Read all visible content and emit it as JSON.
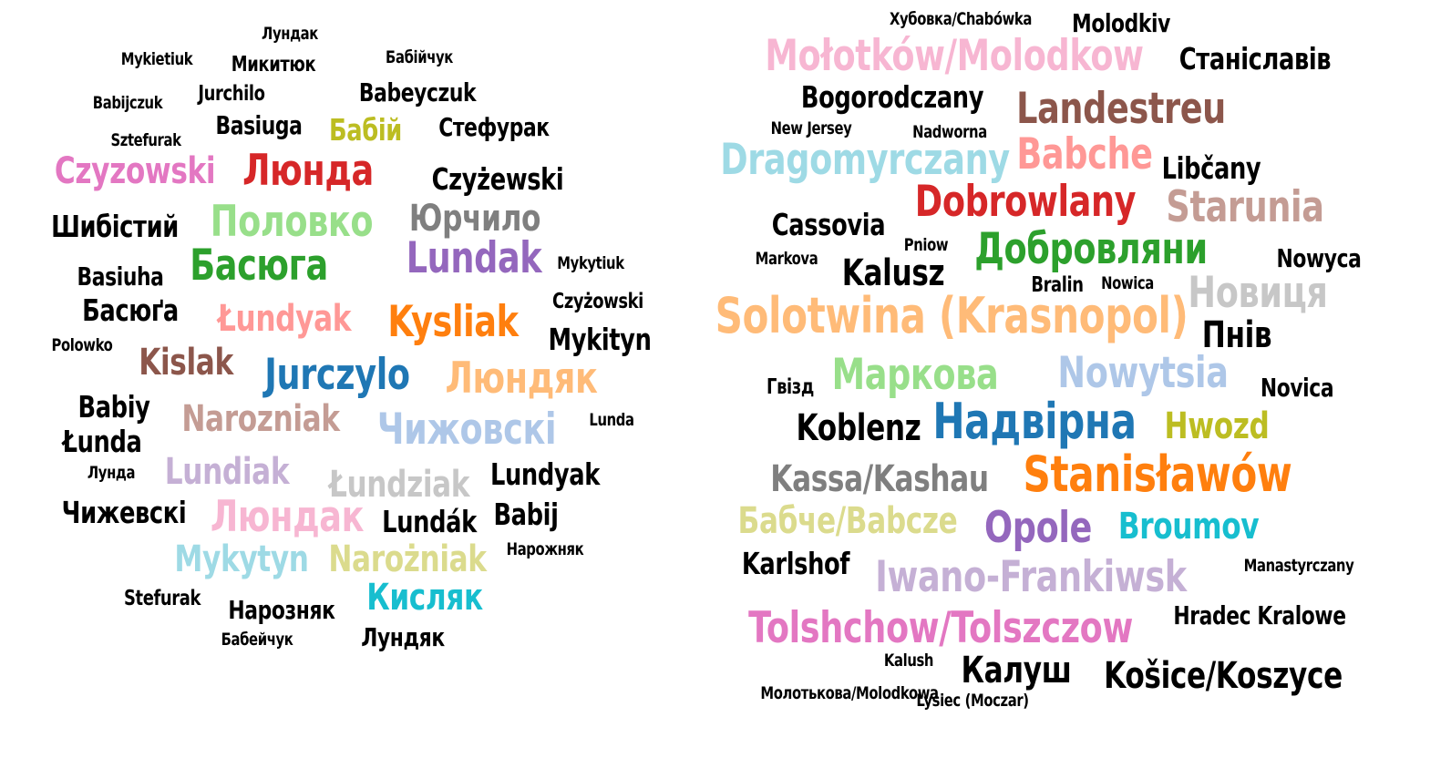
{
  "left_cloud": {
    "words": [
      {
        "text": "Лундак",
        "color": "#000000"
      },
      {
        "text": "Mykietiuk",
        "color": "#000000"
      },
      {
        "text": "Микитюк",
        "color": "#000000"
      },
      {
        "text": "Бабійчук",
        "color": "#000000"
      },
      {
        "text": "Babijczuk",
        "color": "#000000"
      },
      {
        "text": "Jurchilo",
        "color": "#000000"
      },
      {
        "text": "Babeyczuk",
        "color": "#000000"
      },
      {
        "text": "Basiuga",
        "color": "#000000"
      },
      {
        "text": "Бабій",
        "color": "#bcbd22"
      },
      {
        "text": "Стефурак",
        "color": "#000000"
      },
      {
        "text": "Sztefurak",
        "color": "#000000"
      },
      {
        "text": "Czyzowski",
        "color": "#e377c2"
      },
      {
        "text": "Люнда",
        "color": "#d62728"
      },
      {
        "text": "Czyżewski",
        "color": "#000000"
      },
      {
        "text": "Шибістий",
        "color": "#000000"
      },
      {
        "text": "Половко",
        "color": "#98df8a"
      },
      {
        "text": "Юрчило",
        "color": "#7f7f7f"
      },
      {
        "text": "Basiuha",
        "color": "#000000"
      },
      {
        "text": "Басюга",
        "color": "#2ca02c"
      },
      {
        "text": "Lundak",
        "color": "#9467bd"
      },
      {
        "text": "Mykytiuk",
        "color": "#000000"
      },
      {
        "text": "Басюґа",
        "color": "#000000"
      },
      {
        "text": "Łundyak",
        "color": "#ff9896"
      },
      {
        "text": "Kysliak",
        "color": "#ff7f0e"
      },
      {
        "text": "Czyżowski",
        "color": "#000000"
      },
      {
        "text": "Polowko",
        "color": "#000000"
      },
      {
        "text": "Mykityn",
        "color": "#000000"
      },
      {
        "text": "Kislak",
        "color": "#8c564b"
      },
      {
        "text": "Jurczylo",
        "color": "#1f77b4"
      },
      {
        "text": "Люндяк",
        "color": "#ffbb78"
      },
      {
        "text": "Babiy",
        "color": "#000000"
      },
      {
        "text": "Narozniak",
        "color": "#c49c94"
      },
      {
        "text": "Чижовскі",
        "color": "#aec7e8"
      },
      {
        "text": "Lunda",
        "color": "#000000"
      },
      {
        "text": "Łunda",
        "color": "#000000"
      },
      {
        "text": "Лунда",
        "color": "#000000"
      },
      {
        "text": "Lundiak",
        "color": "#c5b0d5"
      },
      {
        "text": "Łundziak",
        "color": "#c7c7c7"
      },
      {
        "text": "Lundyak",
        "color": "#000000"
      },
      {
        "text": "Чижевскі",
        "color": "#000000"
      },
      {
        "text": "Люндак",
        "color": "#f7b6d2"
      },
      {
        "text": "Lundák",
        "color": "#000000"
      },
      {
        "text": "Babij",
        "color": "#000000"
      },
      {
        "text": "Mykytyn",
        "color": "#9edae5"
      },
      {
        "text": "Narożniak",
        "color": "#dbdb8d"
      },
      {
        "text": "Нарожняк",
        "color": "#000000"
      },
      {
        "text": "Stefurak",
        "color": "#000000"
      },
      {
        "text": "Нарозняк",
        "color": "#000000"
      },
      {
        "text": "Кисляк",
        "color": "#17becf"
      },
      {
        "text": "Бабейчук",
        "color": "#000000"
      },
      {
        "text": "Лундяк",
        "color": "#000000"
      }
    ]
  },
  "right_cloud": {
    "words": [
      {
        "text": "Хубовка/Chabówka",
        "color": "#000000"
      },
      {
        "text": "Molodkiv",
        "color": "#000000"
      },
      {
        "text": "Mołotków/Molodkow",
        "color": "#f7b6d2"
      },
      {
        "text": "Станіславів",
        "color": "#000000"
      },
      {
        "text": "Bogorodczany",
        "color": "#000000"
      },
      {
        "text": "Landestreu",
        "color": "#8c564b"
      },
      {
        "text": "New Jersey",
        "color": "#000000"
      },
      {
        "text": "Nadworna",
        "color": "#000000"
      },
      {
        "text": "Dragomyrczany",
        "color": "#9edae5"
      },
      {
        "text": "Babche",
        "color": "#ff9896"
      },
      {
        "text": "Libčany",
        "color": "#000000"
      },
      {
        "text": "Dobrowlany",
        "color": "#d62728"
      },
      {
        "text": "Starunia",
        "color": "#c49c94"
      },
      {
        "text": "Cassovia",
        "color": "#000000"
      },
      {
        "text": "Pniow",
        "color": "#000000"
      },
      {
        "text": "Markova",
        "color": "#000000"
      },
      {
        "text": "Добровляни",
        "color": "#2ca02c"
      },
      {
        "text": "Nowyca",
        "color": "#000000"
      },
      {
        "text": "Kalusz",
        "color": "#000000"
      },
      {
        "text": "Bralin",
        "color": "#000000"
      },
      {
        "text": "Nowica",
        "color": "#000000"
      },
      {
        "text": "Новиця",
        "color": "#c7c7c7"
      },
      {
        "text": "Solotwina (Krasnopol)",
        "color": "#ffbb78"
      },
      {
        "text": "Пнів",
        "color": "#000000"
      },
      {
        "text": "Гвізд",
        "color": "#000000"
      },
      {
        "text": "Маркова",
        "color": "#98df8a"
      },
      {
        "text": "Nowytsia",
        "color": "#aec7e8"
      },
      {
        "text": "Novica",
        "color": "#000000"
      },
      {
        "text": "Koblenz",
        "color": "#000000"
      },
      {
        "text": "Надвірна",
        "color": "#1f77b4"
      },
      {
        "text": "Hwozd",
        "color": "#bcbd22"
      },
      {
        "text": "Kassa/Kashau",
        "color": "#7f7f7f"
      },
      {
        "text": "Stanisławów",
        "color": "#ff7f0e"
      },
      {
        "text": "Бабче/Babcze",
        "color": "#dbdb8d"
      },
      {
        "text": "Opole",
        "color": "#9467bd"
      },
      {
        "text": "Broumov",
        "color": "#17becf"
      },
      {
        "text": "Karlshof",
        "color": "#000000"
      },
      {
        "text": "Iwano-Frankiwsk",
        "color": "#c5b0d5"
      },
      {
        "text": "Manastyrczany",
        "color": "#000000"
      },
      {
        "text": "Tolshchow/Tolszczow",
        "color": "#e377c2"
      },
      {
        "text": "Hradec Kralowe",
        "color": "#000000"
      },
      {
        "text": "Kalush",
        "color": "#000000"
      },
      {
        "text": "Калуш",
        "color": "#000000"
      },
      {
        "text": "Košice/Koszyce",
        "color": "#000000"
      },
      {
        "text": "Молотькова/Molodkowa",
        "color": "#000000"
      },
      {
        "text": "Lysiec (Moczar)",
        "color": "#000000"
      }
    ]
  }
}
